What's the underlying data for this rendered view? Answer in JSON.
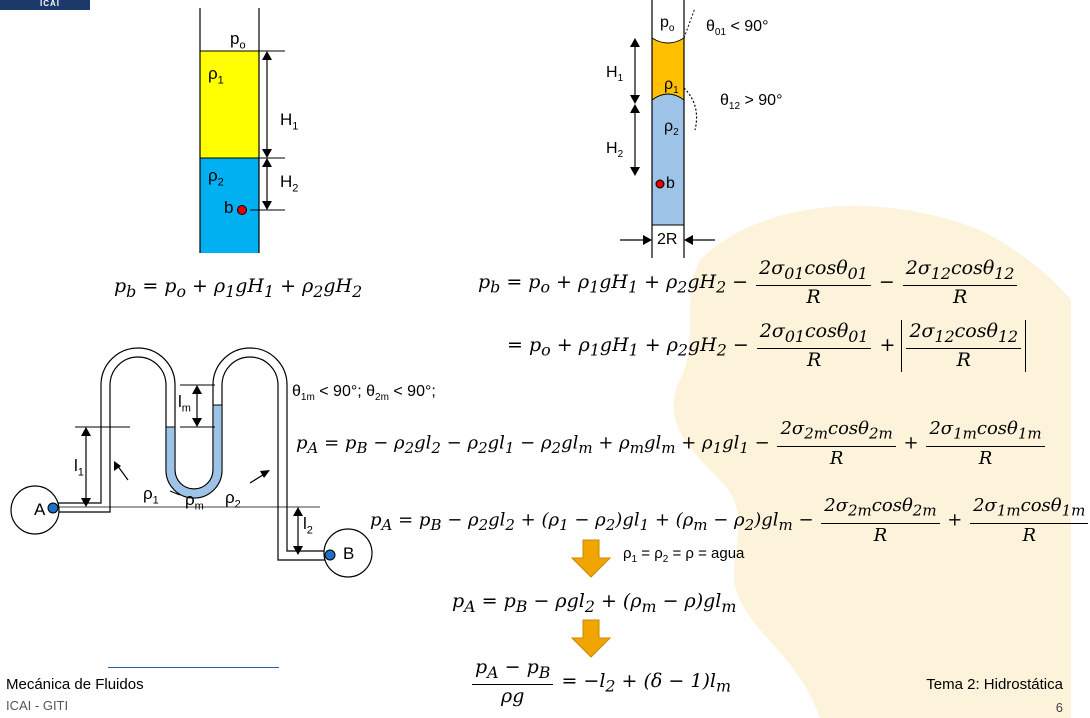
{
  "header": {
    "logo_text": "ICAI"
  },
  "fig1": {
    "p_top": "po",
    "rho1": "ρ1",
    "rho2": "ρ2",
    "H1": "H1",
    "H2": "H2",
    "point_b": "b",
    "colors": {
      "fluid1": "#ffff00",
      "fluid2": "#00b0f0",
      "point": "#e00000"
    }
  },
  "fig2": {
    "p_top": "po",
    "theta01": "θ01 < 90°",
    "theta12": "θ12 > 90°",
    "rho1": "ρ1",
    "rho2": "ρ2",
    "H1": "H1",
    "H2": "H2",
    "point_b": "b",
    "width": "2R",
    "colors": {
      "fluid1": "#ffc000",
      "fluid2": "#9dc3e6"
    }
  },
  "fig3": {
    "A": "A",
    "B": "B",
    "l1": "l1",
    "l2": "l2",
    "lm": "lm",
    "rho1": "ρ1",
    "rhom": "ρm",
    "rho2": "ρ2",
    "colors": {
      "manometer_fluid": "#9dc3e6",
      "endpoint": "#1f6fc4"
    }
  },
  "equations": {
    "eq_fig1": "p_b = p_o + ρ1 g H1 + ρ2 g H2",
    "eq_fig2_line1": "p_b = p_o + ρ1 g H1 + ρ2 g H2 − 2σ01 cosθ01 / R − 2σ12 cosθ12 / R",
    "eq_fig2_line2": "= p_o + ρ1 g H1 + ρ2 g H2 − 2σ01 cosθ01 / R + |2σ12 cosθ12 / R|",
    "angles_condition": "θ1m < 90°; θ2m < 90°;",
    "eq_A_line1": "p_A = p_B − ρ2 g l2 − ρ2 g l1 − ρ2 g lm + ρm g lm + ρ1 g l1 − 2σ2m cosθ2m / R + 2σ1m cosθ1m / R",
    "eq_A_line2": "p_A = p_B − ρ2 g l2 + (ρ1 − ρ2) g l1 + (ρm − ρ2) g lm − 2σ2m cosθ2m / R + 2σ1m cosθ1m / R",
    "assumption": "ρ1 = ρ2 = ρ = agua",
    "eq_simplified": "p_A = p_B − ρ g l2 + (ρm − ρ) g lm",
    "eq_final": "(p_A − p_B) / ρg = −l2 + (δ − 1) lm"
  },
  "footer": {
    "course": "Mecánica de Fluidos",
    "institution": "ICAI - GITI",
    "topic": "Tema 2: Hidrostática",
    "page": "6"
  },
  "colors": {
    "arrow": "#f0a500",
    "footer_line": "#2b5fa8",
    "watermark": "#fdf0d0"
  }
}
